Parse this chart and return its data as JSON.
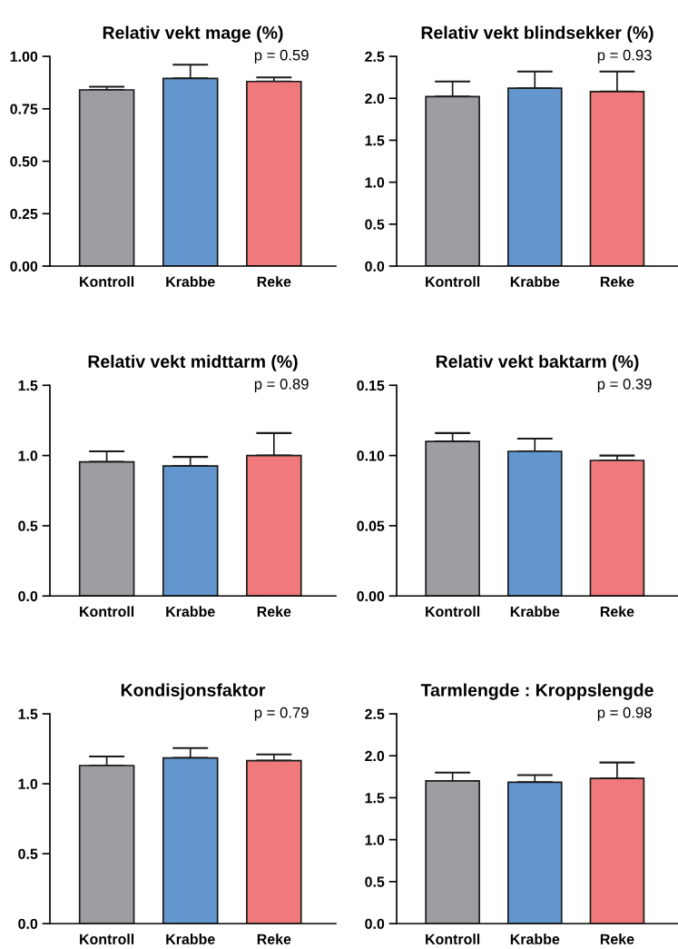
{
  "chart_data": [
    {
      "type": "bar",
      "title": "Relativ vekt mage (%)",
      "categories": [
        "Kontroll",
        "Krabbe",
        "Reke"
      ],
      "values": [
        0.84,
        0.895,
        0.88
      ],
      "colors": [
        "#9d9ea2",
        "#6396cf",
        "#f07a7b"
      ],
      "errors": [
        [
          0.84,
          0.855
        ],
        [
          0.895,
          0.96
        ],
        [
          0.88,
          0.9
        ]
      ],
      "ylim": [
        0,
        1.0
      ],
      "yticks": [
        {
          "value": 0,
          "label": "0.00"
        },
        {
          "value": 0.25,
          "label": "0.25"
        },
        {
          "value": 0.5,
          "label": "0.50"
        },
        {
          "value": 0.75,
          "label": "0.75"
        },
        {
          "value": 1.0,
          "label": "1.00"
        }
      ],
      "annotations": [
        "p = 0.59"
      ],
      "grid": false
    },
    {
      "type": "bar",
      "title": "Relativ vekt blindsekker (%)",
      "categories": [
        "Kontroll",
        "Krabbe",
        "Reke"
      ],
      "values": [
        2.02,
        2.12,
        2.08
      ],
      "colors": [
        "#9d9ea2",
        "#6396cf",
        "#f07a7b"
      ],
      "errors": [
        [
          2.02,
          2.2
        ],
        [
          2.12,
          2.32
        ],
        [
          2.08,
          2.32
        ]
      ],
      "ylim": [
        0,
        2.5
      ],
      "yticks": [
        {
          "value": 0,
          "label": "0.0"
        },
        {
          "value": 0.5,
          "label": "0.5"
        },
        {
          "value": 1.0,
          "label": "1.0"
        },
        {
          "value": 1.5,
          "label": "1.5"
        },
        {
          "value": 2.0,
          "label": "2.0"
        },
        {
          "value": 2.5,
          "label": "2.5"
        }
      ],
      "annotations": [
        "p = 0.93"
      ],
      "grid": false
    },
    {
      "type": "bar",
      "title": "Relativ vekt midttarm (%)",
      "categories": [
        "Kontroll",
        "Krabbe",
        "Reke"
      ],
      "values": [
        0.955,
        0.925,
        1.0
      ],
      "colors": [
        "#9d9ea2",
        "#6396cf",
        "#f07a7b"
      ],
      "errors": [
        [
          0.955,
          1.03
        ],
        [
          0.925,
          0.99
        ],
        [
          1.0,
          1.16
        ]
      ],
      "ylim": [
        0,
        1.5
      ],
      "yticks": [
        {
          "value": 0,
          "label": "0.0"
        },
        {
          "value": 0.5,
          "label": "0.5"
        },
        {
          "value": 1.0,
          "label": "1.0"
        },
        {
          "value": 1.5,
          "label": "1.5"
        }
      ],
      "annotations": [
        "p = 0.89"
      ],
      "grid": false
    },
    {
      "type": "bar",
      "title": "Relativ vekt baktarm (%)",
      "categories": [
        "Kontroll",
        "Krabbe",
        "Reke"
      ],
      "values": [
        0.11,
        0.103,
        0.0965
      ],
      "colors": [
        "#9d9ea2",
        "#6396cf",
        "#f07a7b"
      ],
      "errors": [
        [
          0.11,
          0.116
        ],
        [
          0.103,
          0.112
        ],
        [
          0.0965,
          0.1
        ]
      ],
      "ylim": [
        0,
        0.15
      ],
      "yticks": [
        {
          "value": 0,
          "label": "0.00"
        },
        {
          "value": 0.05,
          "label": "0.05"
        },
        {
          "value": 0.1,
          "label": "0.10"
        },
        {
          "value": 0.15,
          "label": "0.15"
        }
      ],
      "annotations": [
        "p = 0.39"
      ],
      "grid": false
    },
    {
      "type": "bar",
      "title": "Kondisjonsfaktor",
      "categories": [
        "Kontroll",
        "Krabbe",
        "Reke"
      ],
      "values": [
        1.13,
        1.185,
        1.165
      ],
      "colors": [
        "#9d9ea2",
        "#6396cf",
        "#f07a7b"
      ],
      "errors": [
        [
          1.13,
          1.195
        ],
        [
          1.185,
          1.255
        ],
        [
          1.165,
          1.21
        ]
      ],
      "ylim": [
        0,
        1.5
      ],
      "yticks": [
        {
          "value": 0,
          "label": "0.0"
        },
        {
          "value": 0.5,
          "label": "0.5"
        },
        {
          "value": 1.0,
          "label": "1.0"
        },
        {
          "value": 1.5,
          "label": "1.5"
        }
      ],
      "annotations": [
        "p = 0.79"
      ],
      "grid": false
    },
    {
      "type": "bar",
      "title": "Tarmlengde : Kroppslengde",
      "categories": [
        "Kontroll",
        "Krabbe",
        "Reke"
      ],
      "values": [
        1.7,
        1.685,
        1.73
      ],
      "colors": [
        "#9d9ea2",
        "#6396cf",
        "#f07a7b"
      ],
      "errors": [
        [
          1.7,
          1.8
        ],
        [
          1.685,
          1.77
        ],
        [
          1.73,
          1.92
        ]
      ],
      "ylim": [
        0,
        2.5
      ],
      "yticks": [
        {
          "value": 0,
          "label": "0.0"
        },
        {
          "value": 0.5,
          "label": "0.5"
        },
        {
          "value": 1.0,
          "label": "1.0"
        },
        {
          "value": 1.5,
          "label": "1.5"
        },
        {
          "value": 2.0,
          "label": "2.0"
        },
        {
          "value": 2.5,
          "label": "2.5"
        }
      ],
      "annotations": [
        "p = 0.98"
      ],
      "grid": false
    }
  ]
}
